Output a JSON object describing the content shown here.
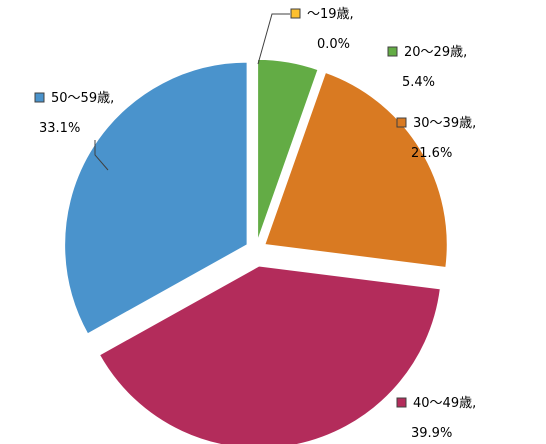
{
  "chart_data": {
    "type": "pie",
    "start_angle_deg": 90,
    "direction": "clockwise",
    "exploded": true,
    "legend": "none",
    "slices": [
      {
        "category": "～19歳,",
        "value": 0.0,
        "value_label": "0.0%",
        "color": "#fdc02f"
      },
      {
        "category": "20～29歳,",
        "value": 5.4,
        "value_label": "5.4%",
        "color": "#63ac45"
      },
      {
        "category": "30～39歳,",
        "value": 21.6,
        "value_label": "21.6%",
        "color": "#d97a22"
      },
      {
        "category": "40～49歳,",
        "value": 39.9,
        "value_label": "39.9%",
        "color": "#b32c5b"
      },
      {
        "category": "50～59歳,",
        "value": 33.1,
        "value_label": "33.1%",
        "color": "#4a93cc"
      }
    ]
  }
}
